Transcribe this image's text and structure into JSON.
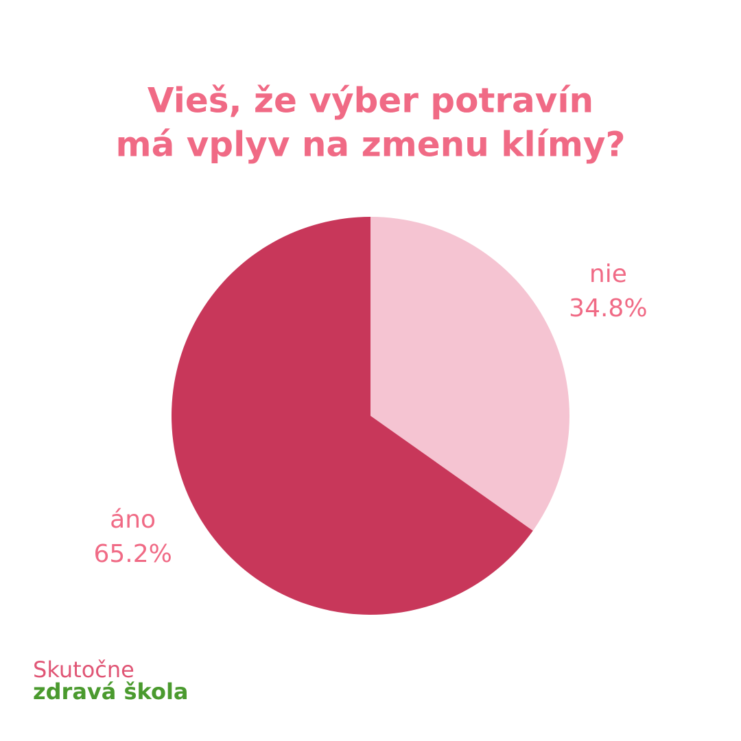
{
  "chart_data": {
    "type": "pie",
    "title": [
      "Vieš, že výber potravín",
      "má vplyv na zmenu klímy?"
    ],
    "categories": [
      "nie",
      "áno"
    ],
    "values": [
      34.8,
      65.2
    ],
    "value_labels": [
      "34.8%",
      "65.2%"
    ],
    "colors": [
      "#f5c4d2",
      "#c8375a"
    ]
  },
  "logo": {
    "line1": "Skutočne",
    "line2": "zdravá škola"
  }
}
